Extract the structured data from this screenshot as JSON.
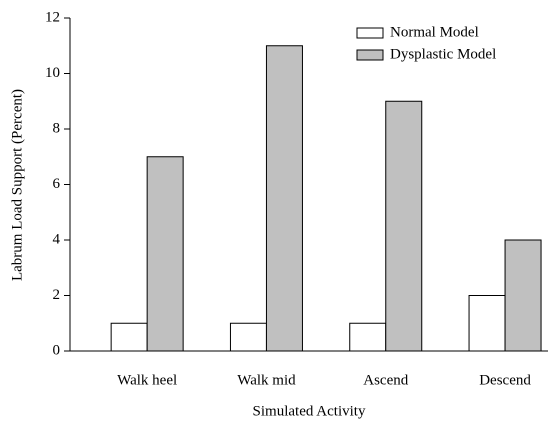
{
  "chart_data": {
    "type": "bar",
    "y_label": "Labrum Load Support (Percent)",
    "x_label": "Simulated Activity",
    "categories": [
      "Walk heel",
      "Walk mid",
      "Ascend",
      "Descend"
    ],
    "series": [
      {
        "name": "Normal Model",
        "color": "#ffffff",
        "values": [
          1,
          1,
          1,
          2
        ]
      },
      {
        "name": "Dysplastic Model",
        "color": "#c0c0c0",
        "values": [
          7,
          11,
          9,
          4
        ]
      }
    ],
    "ylim": [
      0,
      12
    ],
    "yticks": [
      0,
      2,
      4,
      6,
      8,
      10,
      12
    ],
    "legend": "top-right"
  }
}
